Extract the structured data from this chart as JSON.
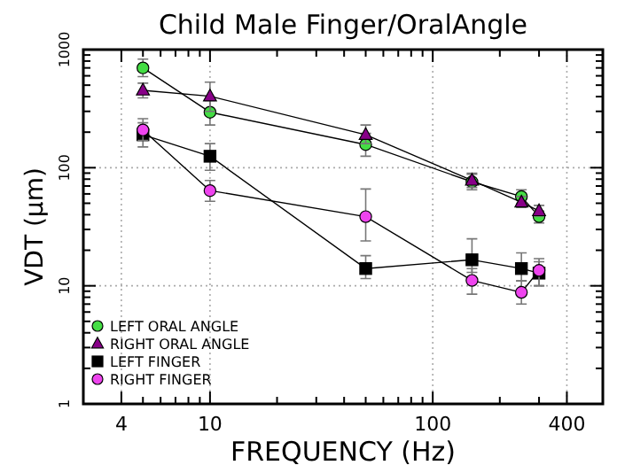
{
  "chart_data": {
    "type": "line",
    "title": "Child Male Finger/OralAngle",
    "xlabel": "FREQUENCY (Hz)",
    "ylabel": "VDT (μm)",
    "log": "xy",
    "grid": true,
    "legend": "bottom left",
    "line_style": "solid",
    "x": [
      5,
      10,
      50,
      150,
      250,
      300
    ],
    "xlim": [
      2.7,
      580
    ],
    "ylim": [
      1,
      1000
    ],
    "xticks": [
      4,
      {
        "value": 5,
        "label": null
      },
      {
        "value": 6,
        "label": null
      },
      {
        "value": 7,
        "label": null
      },
      {
        "value": 8,
        "label": null
      },
      {
        "value": 9,
        "label": null
      },
      10,
      {
        "value": 20,
        "label": null
      },
      {
        "value": 30,
        "label": null
      },
      {
        "value": 40,
        "label": null
      },
      {
        "value": 50,
        "label": null
      },
      {
        "value": 60,
        "label": null
      },
      {
        "value": 70,
        "label": null
      },
      {
        "value": 80,
        "label": null
      },
      {
        "value": 90,
        "label": null
      },
      100,
      {
        "value": 200,
        "label": null
      },
      {
        "value": 300,
        "label": null
      },
      400
    ],
    "yticks": [
      1,
      {
        "value": 2,
        "label": null
      },
      {
        "value": 3,
        "label": null
      },
      {
        "value": 4,
        "label": null
      },
      {
        "value": 5,
        "label": null
      },
      {
        "value": 6,
        "label": null
      },
      {
        "value": 7,
        "label": null
      },
      {
        "value": 8,
        "label": null
      },
      {
        "value": 9,
        "label": null
      },
      10,
      {
        "value": 20,
        "label": null
      },
      {
        "value": 30,
        "label": null
      },
      {
        "value": 40,
        "label": null
      },
      {
        "value": 50,
        "label": null
      },
      {
        "value": 60,
        "label": null
      },
      {
        "value": 70,
        "label": null
      },
      {
        "value": 80,
        "label": null
      },
      {
        "value": 90,
        "label": null
      },
      100,
      {
        "value": 200,
        "label": null
      },
      {
        "value": 300,
        "label": null
      },
      {
        "value": 400,
        "label": null
      },
      {
        "value": 500,
        "label": null
      },
      {
        "value": 600,
        "label": null
      },
      {
        "value": 700,
        "label": null
      },
      {
        "value": 800,
        "label": null
      },
      {
        "value": 900,
        "label": null
      },
      1000
    ],
    "series": [
      {
        "name": "LEFT ORAL ANGLE",
        "color": "#44dd44",
        "marker": "circle",
        "values": [
          700,
          295,
          157,
          76,
          57,
          38.5
        ],
        "errors": [
          [
            590,
            830
          ],
          [
            230,
            370
          ],
          [
            125,
            195
          ],
          [
            65,
            88
          ],
          [
            50,
            65
          ],
          [
            34,
            43
          ]
        ]
      },
      {
        "name": "RIGHT ORAL ANGLE",
        "color": "#880088",
        "marker": "triangle",
        "values": [
          452,
          403,
          190,
          78,
          51,
          43
        ],
        "errors": [
          [
            390,
            520
          ],
          [
            300,
            530
          ],
          [
            160,
            230
          ],
          [
            68,
            90
          ],
          [
            46,
            57
          ],
          [
            39,
            48
          ]
        ]
      },
      {
        "name": "LEFT FINGER",
        "color": "#000000",
        "marker": "square",
        "values": [
          190,
          125,
          14,
          16.6,
          14,
          12.8
        ],
        "errors": [
          [
            150,
            240
          ],
          [
            95,
            160
          ],
          [
            11.5,
            18
          ],
          [
            13,
            25
          ],
          [
            11,
            19
          ],
          [
            10,
            16
          ]
        ]
      },
      {
        "name": "RIGHT FINGER",
        "color": "#ee44ee",
        "marker": "circle",
        "values": [
          209,
          64,
          38.5,
          11.1,
          8.8,
          13.5
        ],
        "errors": [
          [
            170,
            260
          ],
          [
            52,
            78
          ],
          [
            24,
            66
          ],
          [
            8.5,
            14
          ],
          [
            7,
            11
          ],
          [
            10,
            17
          ]
        ]
      }
    ]
  }
}
